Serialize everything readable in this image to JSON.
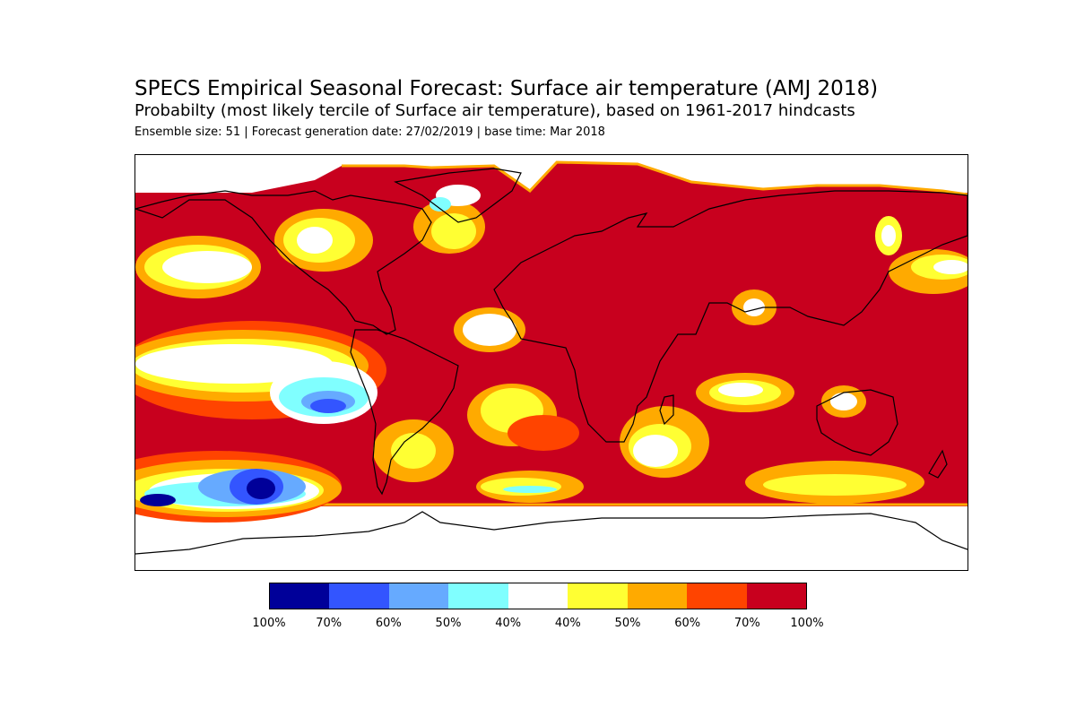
{
  "title": "SPECS Empirical Seasonal Forecast: Surface air temperature (AMJ 2018)",
  "subtitle": "Probabilty (most likely tercile of Surface air temperature), based on 1961-2017 hindcasts",
  "meta": "Ensemble size: 51 | Forecast generation date: 27/02/2019 | base time: Mar 2018",
  "colorbar": {
    "colors": [
      "#000099",
      "#3355ff",
      "#66aaff",
      "#80ffff",
      "#ffffff",
      "#ffff33",
      "#ffaa00",
      "#ff4400",
      "#c8001e"
    ],
    "tick_labels": [
      "100%",
      "70%",
      "60%",
      "50%",
      "40%",
      "40%",
      "50%",
      "60%",
      "70%",
      "100%"
    ]
  },
  "colors": {
    "background_above": "#c8001e",
    "coastline": "#000000",
    "no_data": "#ffffff"
  }
}
